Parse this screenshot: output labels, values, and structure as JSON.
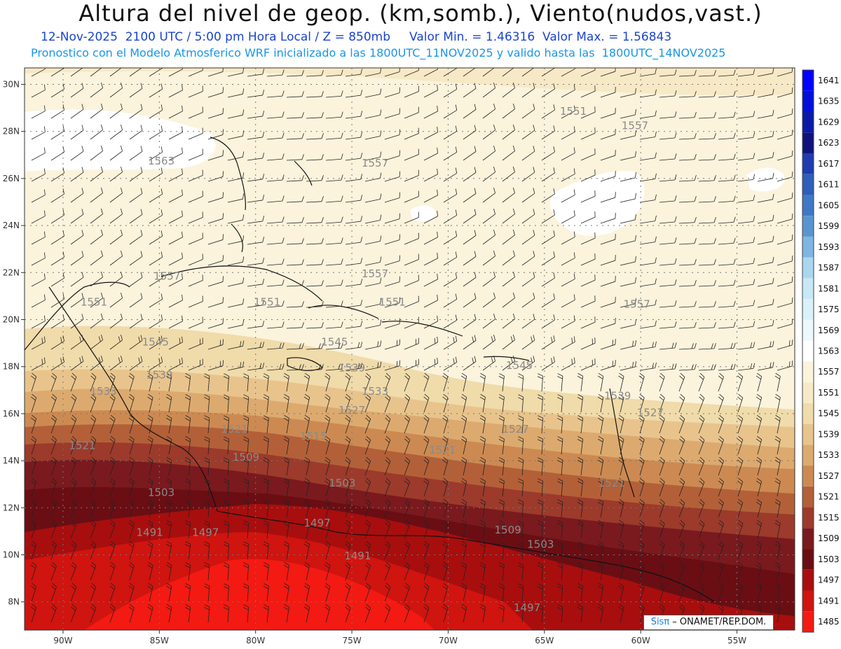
{
  "title": "Altura del nivel de geop. (km,somb.), Viento(nudos,vast.)",
  "subtitle1": "12-Nov-2025  2100 UTC / 5:00 pm Hora Local / Z = 850mb     Valor Min. = 1.46316  Valor Max. = 1.56843",
  "subtitle2": "Pronostico con el Modelo Atmosferico WRF inicializado a las 1800UTC_11NOV2025 y valido hasta las  1800UTC_14NOV2025",
  "credit": {
    "brand": "Sisπ",
    "text": " – ONAMET/REP.DOM."
  },
  "lat_ticks": [
    "30N",
    "28N",
    "26N",
    "24N",
    "22N",
    "20N",
    "18N",
    "16N",
    "14N",
    "12N",
    "10N",
    "8N"
  ],
  "lon_ticks": [
    "90W",
    "85W",
    "80W",
    "75W",
    "70W",
    "65W",
    "60W",
    "55W"
  ],
  "colorbar": {
    "levels": [
      "1641",
      "1635",
      "1629",
      "1623",
      "1617",
      "1611",
      "1605",
      "1599",
      "1593",
      "1587",
      "1581",
      "1575",
      "1569",
      "1563",
      "1557",
      "1551",
      "1545",
      "1539",
      "1533",
      "1527",
      "1521",
      "1515",
      "1509",
      "1503",
      "1497",
      "1491",
      "1485"
    ],
    "colors": [
      "#0000ff",
      "#0010d8",
      "#0a1aa8",
      "#0f127a",
      "#1e3cb0",
      "#2e5eb8",
      "#3f78c4",
      "#5a94d0",
      "#7eb5e2",
      "#a8d7ef",
      "#c6e8f5",
      "#daf1f9",
      "#ecf8fc",
      "#ffffff",
      "#fbf3dc",
      "#f7e9c6",
      "#f0dbaa",
      "#e8c48c",
      "#dcaa6f",
      "#cc8a52",
      "#b36038",
      "#9c3a2b",
      "#7a1a1e",
      "#6a0e14",
      "#a80e0e",
      "#d0140f",
      "#f21a12"
    ]
  },
  "contour_labels": [
    {
      "text": "1551",
      "lon": -63.5,
      "lat": 28.7
    },
    {
      "text": "1557",
      "lon": -60.3,
      "lat": 28.1
    },
    {
      "text": "1563",
      "lon": -84.9,
      "lat": 26.6
    },
    {
      "text": "1557",
      "lon": -73.8,
      "lat": 26.5
    },
    {
      "text": "1557",
      "lon": -84.6,
      "lat": 21.7
    },
    {
      "text": "1557",
      "lon": -73.8,
      "lat": 21.8
    },
    {
      "text": "1557",
      "lon": -60.2,
      "lat": 20.5
    },
    {
      "text": "1551",
      "lon": -88.4,
      "lat": 20.6
    },
    {
      "text": "1551",
      "lon": -79.4,
      "lat": 20.6
    },
    {
      "text": "1551",
      "lon": -72.9,
      "lat": 20.6
    },
    {
      "text": "1545",
      "lon": -85.2,
      "lat": 18.9
    },
    {
      "text": "1545",
      "lon": -75.9,
      "lat": 18.9
    },
    {
      "text": "1545",
      "lon": -66.3,
      "lat": 17.9
    },
    {
      "text": "1539",
      "lon": -85.0,
      "lat": 17.5
    },
    {
      "text": "1539",
      "lon": -75.0,
      "lat": 17.8
    },
    {
      "text": "1539",
      "lon": -61.2,
      "lat": 16.6
    },
    {
      "text": "1533",
      "lon": -87.9,
      "lat": 16.8
    },
    {
      "text": "1533",
      "lon": -73.8,
      "lat": 16.8
    },
    {
      "text": "1527",
      "lon": -75.0,
      "lat": 16.0
    },
    {
      "text": "1527",
      "lon": -66.5,
      "lat": 15.2
    },
    {
      "text": "1527",
      "lon": -59.5,
      "lat": 15.9
    },
    {
      "text": "1521",
      "lon": -89.0,
      "lat": 14.5
    },
    {
      "text": "1521",
      "lon": -81.1,
      "lat": 15.2
    },
    {
      "text": "1521",
      "lon": -70.3,
      "lat": 14.3
    },
    {
      "text": "1521",
      "lon": -61.5,
      "lat": 12.9
    },
    {
      "text": "1515",
      "lon": -77.0,
      "lat": 14.9
    },
    {
      "text": "1509",
      "lon": -80.5,
      "lat": 14.0
    },
    {
      "text": "1509",
      "lon": -66.9,
      "lat": 10.9
    },
    {
      "text": "1503",
      "lon": -84.9,
      "lat": 12.5
    },
    {
      "text": "1503",
      "lon": -75.5,
      "lat": 12.9
    },
    {
      "text": "1503",
      "lon": -65.2,
      "lat": 10.3
    },
    {
      "text": "1497",
      "lon": -76.8,
      "lat": 11.2
    },
    {
      "text": "1497",
      "lon": -82.6,
      "lat": 10.8
    },
    {
      "text": "1497",
      "lon": -65.9,
      "lat": 7.6
    },
    {
      "text": "1491",
      "lon": -85.5,
      "lat": 10.8
    },
    {
      "text": "1491",
      "lon": -74.7,
      "lat": 9.8
    }
  ]
}
